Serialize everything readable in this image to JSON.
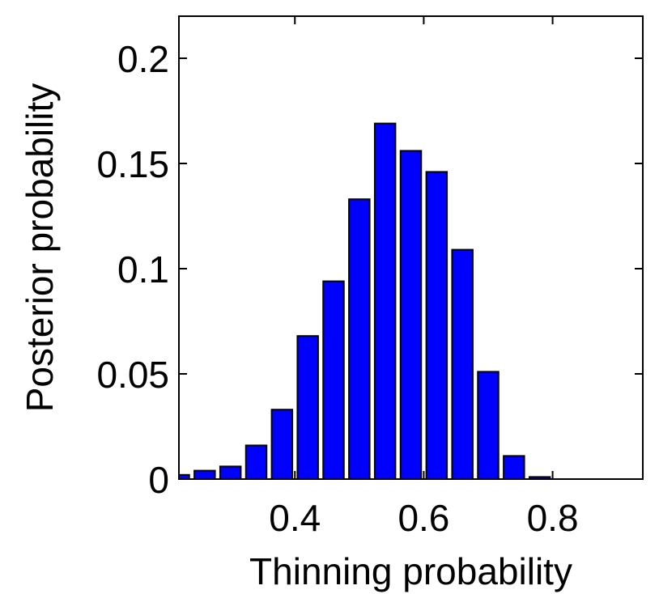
{
  "chart_data": {
    "type": "bar",
    "title": "",
    "xlabel": "Thinning probability",
    "ylabel": "Posterior probability",
    "xlim": [
      0.22,
      0.94
    ],
    "ylim": [
      0,
      0.22
    ],
    "xticks": [
      0.4,
      0.6,
      0.8
    ],
    "xtick_labels": [
      "0.4",
      "0.6",
      "0.8"
    ],
    "yticks": [
      0,
      0.05,
      0.1,
      0.15,
      0.2
    ],
    "ytick_labels": [
      "0",
      "0.05",
      "0.1",
      "0.15",
      "0.2"
    ],
    "bar_width": 0.04,
    "grid": false,
    "legend": "none",
    "bar_color": "#0000ff",
    "edge_color": "#000000",
    "x": [
      0.22,
      0.26,
      0.3,
      0.34,
      0.38,
      0.42,
      0.46,
      0.5,
      0.54,
      0.58,
      0.62,
      0.66,
      0.7,
      0.74,
      0.78,
      0.82,
      0.86,
      0.9
    ],
    "values": [
      0.002,
      0.004,
      0.006,
      0.016,
      0.033,
      0.068,
      0.094,
      0.133,
      0.169,
      0.156,
      0.146,
      0.109,
      0.051,
      0.011,
      0.001,
      0,
      0,
      0
    ]
  }
}
